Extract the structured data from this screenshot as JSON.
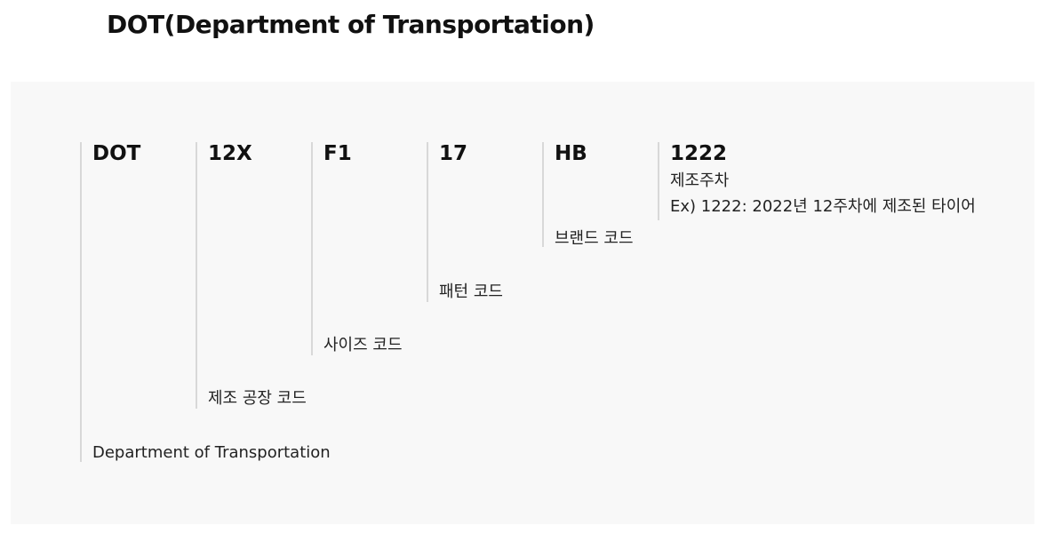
{
  "title": "DOT(Department of Transportation)",
  "segments": [
    {
      "code": "DOT",
      "description": "Department of Transportation"
    },
    {
      "code": "12X",
      "description": "제조 공장 코드"
    },
    {
      "code": "F1",
      "description": "사이즈 코드"
    },
    {
      "code": "17",
      "description": "패턴 코드"
    },
    {
      "code": "HB",
      "description": "브랜드 코드"
    },
    {
      "code": "1222",
      "description": "제조주차",
      "example": "Ex) 1222: 2022년 12주차에 제조된 타이어"
    }
  ]
}
